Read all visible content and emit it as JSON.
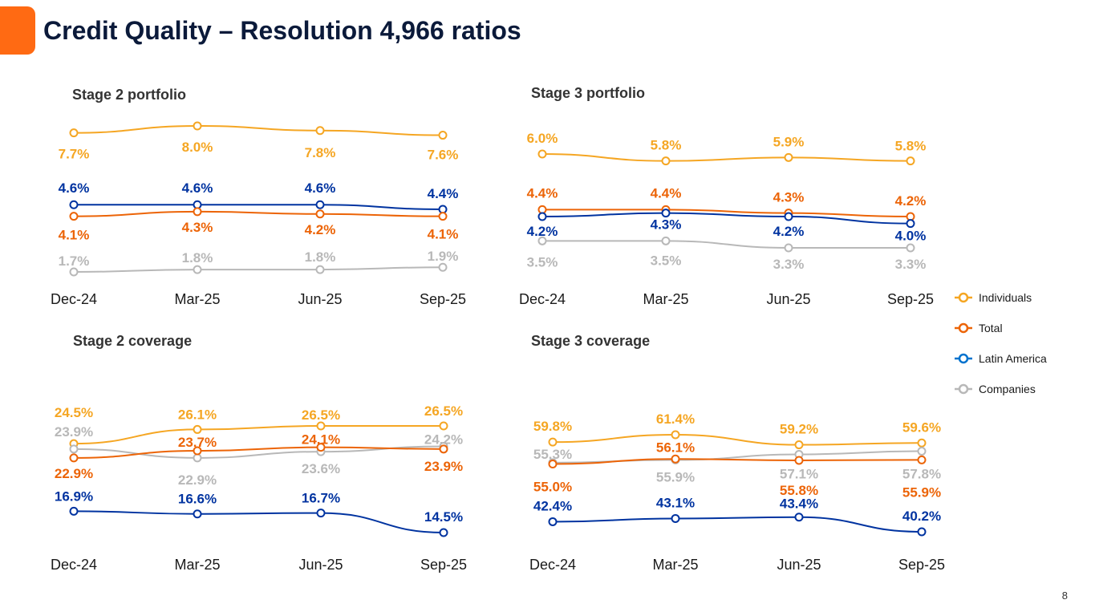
{
  "slide": {
    "title": "Credit Quality – Resolution 4,966 ratios",
    "page_number": "8"
  },
  "legend": [
    {
      "name": "Individuals",
      "color": "#f5a623"
    },
    {
      "name": "Total",
      "color": "#ec6407"
    },
    {
      "name": "Latin America",
      "color": "#0033a0"
    },
    {
      "name": "Companies",
      "color": "#b8b8b8"
    }
  ],
  "chart_data": [
    {
      "type": "line",
      "title": "Stage 2 portfolio",
      "categories": [
        "Dec-24",
        "Mar-25",
        "Jun-25",
        "Sep-25"
      ],
      "series": [
        {
          "name": "Individuals",
          "values": [
            7.7,
            8.0,
            7.8,
            7.6
          ],
          "labels": [
            "7.7%",
            "8.0%",
            "7.8%",
            "7.6%"
          ]
        },
        {
          "name": "Latin America",
          "values": [
            4.6,
            4.6,
            4.6,
            4.4
          ],
          "labels": [
            "4.6%",
            "4.6%",
            "4.6%",
            "4.4%"
          ]
        },
        {
          "name": "Total",
          "values": [
            4.1,
            4.3,
            4.2,
            4.1
          ],
          "labels": [
            "4.1%",
            "4.3%",
            "4.2%",
            "4.1%"
          ]
        },
        {
          "name": "Companies",
          "values": [
            1.7,
            1.8,
            1.8,
            1.9
          ],
          "labels": [
            "1.7%",
            "1.8%",
            "1.8%",
            "1.9%"
          ]
        }
      ]
    },
    {
      "type": "line",
      "title": "Stage 3 portfolio",
      "categories": [
        "Dec-24",
        "Mar-25",
        "Jun-25",
        "Sep-25"
      ],
      "series": [
        {
          "name": "Individuals",
          "values": [
            6.0,
            5.8,
            5.9,
            5.8
          ],
          "labels": [
            "6.0%",
            "5.8%",
            "5.9%",
            "5.8%"
          ]
        },
        {
          "name": "Total",
          "values": [
            4.4,
            4.4,
            4.3,
            4.2
          ],
          "labels": [
            "4.4%",
            "4.4%",
            "4.3%",
            "4.2%"
          ]
        },
        {
          "name": "Latin America",
          "values": [
            4.2,
            4.3,
            4.2,
            4.0
          ],
          "labels": [
            "4.2%",
            "4.3%",
            "4.2%",
            "4.0%"
          ]
        },
        {
          "name": "Companies",
          "values": [
            3.5,
            3.5,
            3.3,
            3.3
          ],
          "labels": [
            "3.5%",
            "3.5%",
            "3.3%",
            "3.3%"
          ]
        }
      ]
    },
    {
      "type": "line",
      "title": "Stage 2 coverage",
      "categories": [
        "Dec-24",
        "Mar-25",
        "Jun-25",
        "Sep-25"
      ],
      "series": [
        {
          "name": "Individuals",
          "values": [
            24.5,
            26.1,
            26.5,
            26.5
          ],
          "labels": [
            "24.5%",
            "26.1%",
            "26.5%",
            "26.5%"
          ]
        },
        {
          "name": "Companies",
          "values": [
            23.9,
            22.9,
            23.6,
            24.2
          ],
          "labels": [
            "23.9%",
            "22.9%",
            "23.6%",
            "24.2%"
          ]
        },
        {
          "name": "Total",
          "values": [
            22.9,
            23.7,
            24.1,
            23.9
          ],
          "labels": [
            "22.9%",
            "23.7%",
            "24.1%",
            "23.9%"
          ]
        },
        {
          "name": "Latin America",
          "values": [
            16.9,
            16.6,
            16.7,
            14.5
          ],
          "labels": [
            "16.9%",
            "16.6%",
            "16.7%",
            "14.5%"
          ]
        }
      ]
    },
    {
      "type": "line",
      "title": "Stage 3 coverage",
      "categories": [
        "Dec-24",
        "Mar-25",
        "Jun-25",
        "Sep-25"
      ],
      "series": [
        {
          "name": "Individuals",
          "values": [
            59.8,
            61.4,
            59.2,
            59.6
          ],
          "labels": [
            "59.8%",
            "61.4%",
            "59.2%",
            "59.6%"
          ]
        },
        {
          "name": "Companies",
          "values": [
            55.3,
            55.9,
            57.1,
            57.8
          ],
          "labels": [
            "55.3%",
            "55.9%",
            "57.1%",
            "57.8%"
          ]
        },
        {
          "name": "Total",
          "values": [
            55.0,
            56.1,
            55.8,
            55.9
          ],
          "labels": [
            "55.0%",
            "56.1%",
            "55.8%",
            "55.9%"
          ]
        },
        {
          "name": "Latin America",
          "values": [
            42.4,
            43.1,
            43.4,
            40.2
          ],
          "labels": [
            "42.4%",
            "43.1%",
            "43.4%",
            "40.2%"
          ]
        }
      ]
    }
  ]
}
